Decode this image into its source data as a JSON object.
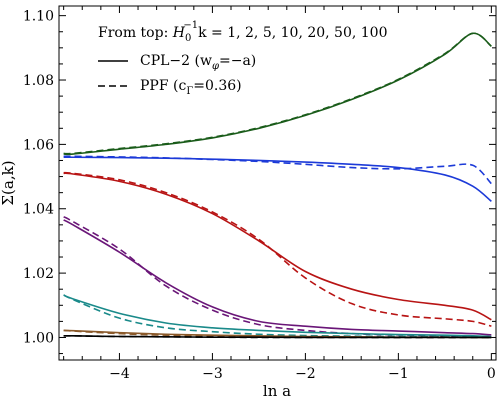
{
  "chart_data": {
    "type": "line",
    "xlabel": "ln a",
    "ylabel": "Σ(a,k)",
    "xlim": [
      -4.65,
      0.05
    ],
    "ylim": [
      0.993,
      1.103
    ],
    "x_ticks": [
      -4,
      -3,
      -2,
      -1,
      0
    ],
    "x_tick_labels": [
      "−4",
      "−3",
      "−2",
      "−1",
      "0"
    ],
    "y_ticks": [
      1.0,
      1.02,
      1.04,
      1.06,
      1.08,
      1.1
    ],
    "y_tick_labels": [
      "1.00",
      "1.02",
      "1.04",
      "1.06",
      "1.08",
      "1.10"
    ],
    "grid": false,
    "legend": {
      "placement": "top-left",
      "heading_prefix": "From top: ",
      "heading_main": "H",
      "heading_sub": "0",
      "heading_sup": "−1",
      "heading_rest": "k = 1, 2, 5, 10, 20, 50, 100",
      "solid_label": "CPL−2 (w",
      "solid_label_sub": "φ",
      "solid_label_rest": "=−a)",
      "dashed_label": "PPF (c",
      "dashed_label_sub": "Γ",
      "dashed_label_rest": "=0.36)"
    },
    "x": [
      -4.6,
      -4.5,
      -4.0,
      -3.5,
      -3.0,
      -2.5,
      -2.0,
      -1.5,
      -1.0,
      -0.5,
      -0.2,
      0.0
    ],
    "series": [
      {
        "color": "#1a5c1a",
        "style": "solid",
        "values": [
          1.057,
          1.057,
          1.0585,
          1.06,
          1.062,
          1.065,
          1.069,
          1.074,
          1.08,
          1.088,
          1.0945,
          1.0905
        ]
      },
      {
        "color": "#1a5c1a",
        "style": "dashed",
        "values": [
          1.0572,
          1.0572,
          1.0587,
          1.0602,
          1.0622,
          1.0652,
          1.0692,
          1.0742,
          1.0802,
          1.0882,
          1.0945,
          1.0905
        ]
      },
      {
        "color": "#1c3ad8",
        "style": "solid",
        "values": [
          1.056,
          1.056,
          1.0559,
          1.0557,
          1.0554,
          1.055,
          1.0545,
          1.0538,
          1.0528,
          1.0505,
          1.047,
          1.0423
        ]
      },
      {
        "color": "#1c3ad8",
        "style": "dashed",
        "values": [
          1.0563,
          1.0563,
          1.0561,
          1.0558,
          1.0553,
          1.0547,
          1.0538,
          1.0528,
          1.0524,
          1.0532,
          1.0535,
          1.0478
        ]
      },
      {
        "color": "#b81414",
        "style": "solid",
        "values": [
          1.051,
          1.0508,
          1.0485,
          1.0445,
          1.0385,
          1.03,
          1.0205,
          1.015,
          1.0118,
          1.01,
          1.0085,
          1.0055
        ]
      },
      {
        "color": "#b81414",
        "style": "dashed",
        "values": [
          1.0512,
          1.051,
          1.049,
          1.045,
          1.039,
          1.0305,
          1.0185,
          1.0105,
          1.007,
          1.0058,
          1.005,
          1.0035
        ]
      },
      {
        "color": "#6a1678",
        "style": "solid",
        "values": [
          1.0365,
          1.035,
          1.0265,
          1.017,
          1.0095,
          1.005,
          1.0035,
          1.0025,
          1.002,
          1.0015,
          1.0012,
          1.0008
        ]
      },
      {
        "color": "#6a1678",
        "style": "dashed",
        "values": [
          1.0375,
          1.036,
          1.0275,
          1.016,
          1.0085,
          1.004,
          1.0022,
          1.0012,
          1.0008,
          1.0005,
          1.0003,
          1.0002
        ]
      },
      {
        "color": "#1a8a8a",
        "style": "solid",
        "values": [
          1.0132,
          1.012,
          1.0075,
          1.0045,
          1.003,
          1.0022,
          1.0016,
          1.0012,
          1.0009,
          1.0007,
          1.0005,
          1.0003
        ]
      },
      {
        "color": "#1a8a8a",
        "style": "dashed",
        "values": [
          1.0132,
          1.0118,
          1.006,
          1.003,
          1.0018,
          1.001,
          1.0006,
          1.0004,
          1.0003,
          1.0002,
          1.0001,
          1.0
        ]
      },
      {
        "color": "#8b5a2b",
        "style": "solid",
        "values": [
          1.0022,
          1.0021,
          1.0015,
          1.001,
          1.0007,
          1.0005,
          1.0003,
          1.0002,
          1.0001,
          1.0001,
          1.0,
          1.0
        ]
      },
      {
        "color": "#8b5a2b",
        "style": "dashed",
        "values": [
          1.0022,
          1.002,
          1.0012,
          1.0007,
          1.0004,
          1.0002,
          1.0001,
          1.0001,
          1.0,
          1.0,
          1.0,
          1.0
        ]
      },
      {
        "color": "#000000",
        "style": "solid",
        "values": [
          1.0005,
          1.0005,
          1.0003,
          1.0002,
          1.0001,
          1.0001,
          1.0,
          1.0,
          1.0,
          1.0,
          1.0,
          1.0
        ]
      },
      {
        "color": "#000000",
        "style": "dashed",
        "values": [
          1.0005,
          1.0005,
          1.0003,
          1.0002,
          1.0001,
          1.0,
          1.0,
          1.0,
          1.0,
          1.0,
          1.0,
          1.0
        ]
      }
    ]
  }
}
